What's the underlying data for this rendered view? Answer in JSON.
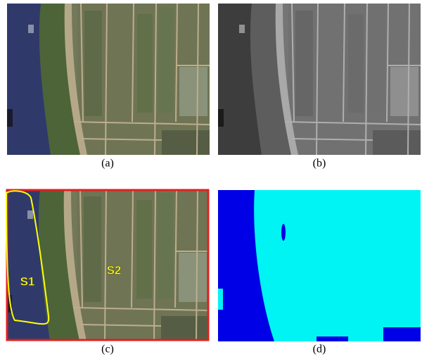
{
  "panels": [
    {
      "caption": "(a)"
    },
    {
      "caption": "(b)"
    },
    {
      "caption": "(c)",
      "labels": [
        "S1",
        "S2"
      ]
    },
    {
      "caption": "(d)"
    }
  ]
}
